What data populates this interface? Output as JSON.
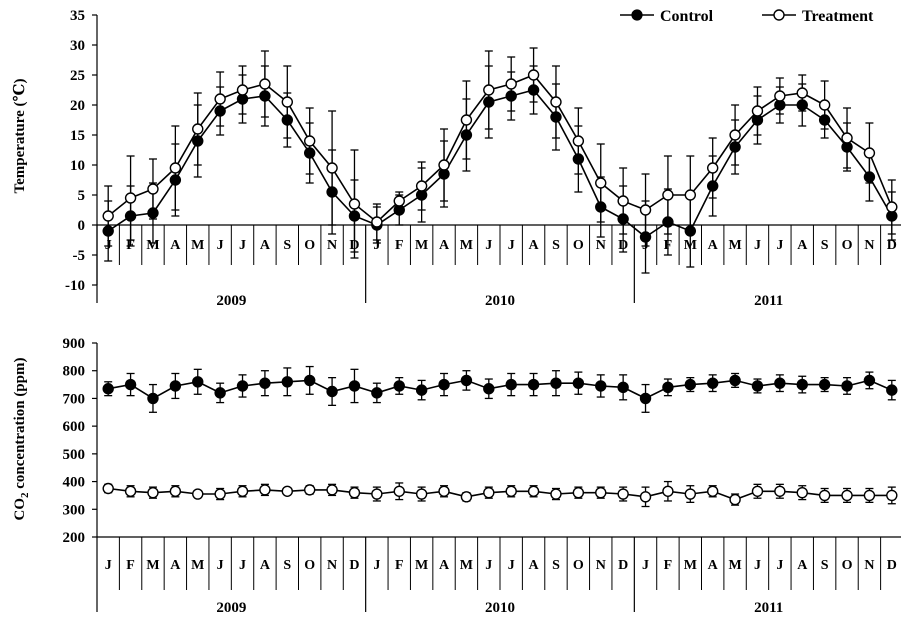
{
  "legend": {
    "control_label": "Control",
    "treatment_label": "Treatment",
    "position": "top-right"
  },
  "chart_data": [
    {
      "type": "line",
      "ylabel": "Temperature (℃)",
      "ylim": [
        -10,
        35
      ],
      "yticks": [
        -10,
        -5,
        0,
        5,
        10,
        15,
        20,
        25,
        30,
        35
      ],
      "months": [
        "J",
        "F",
        "M",
        "A",
        "M",
        "J",
        "J",
        "A",
        "S",
        "O",
        "N",
        "D",
        "J",
        "F",
        "M",
        "A",
        "M",
        "J",
        "J",
        "A",
        "S",
        "O",
        "N",
        "D",
        "J",
        "F",
        "M",
        "A",
        "M",
        "J",
        "J",
        "A",
        "S",
        "O",
        "N",
        "D"
      ],
      "years": [
        "2009",
        "2010",
        "2011"
      ],
      "series": [
        {
          "name": "Control",
          "marker": "filled-circle",
          "values": [
            -1,
            1.5,
            2,
            7.5,
            14,
            19,
            21,
            21.5,
            17.5,
            12,
            5.5,
            1.5,
            0,
            2.5,
            5,
            8.5,
            15,
            20.5,
            21.5,
            22.5,
            18,
            11,
            3,
            1,
            -2,
            0.5,
            -1,
            6.5,
            13,
            17.5,
            20,
            20,
            17.5,
            13,
            8,
            1.5
          ],
          "errors": [
            5,
            5,
            5,
            6,
            6,
            4,
            4,
            5,
            4.5,
            5,
            7,
            6,
            3,
            2.5,
            4.5,
            5.5,
            6,
            6,
            4,
            4,
            5.5,
            5.5,
            5,
            5.5,
            6,
            5.5,
            6,
            5,
            4.5,
            4,
            3,
            3.5,
            3,
            4,
            4,
            4
          ]
        },
        {
          "name": "Treatment",
          "marker": "open-circle",
          "values": [
            1.5,
            4.5,
            6,
            9.5,
            16,
            21,
            22.5,
            23.5,
            20.5,
            14,
            9.5,
            3.5,
            0.5,
            4,
            6.5,
            10,
            17.5,
            22.5,
            23.5,
            25,
            20.5,
            14,
            7,
            4,
            2.5,
            5,
            5,
            9.5,
            15,
            19,
            21.5,
            22,
            20,
            14.5,
            12,
            3
          ],
          "errors": [
            5,
            7,
            5,
            7,
            6,
            4.5,
            4,
            5.5,
            6,
            5.5,
            9.5,
            9,
            3,
            1.5,
            4,
            6,
            6.5,
            6.5,
            4.5,
            4.5,
            6,
            5.5,
            6.5,
            5.5,
            6,
            6.5,
            6.5,
            5,
            5,
            4,
            3,
            3,
            4,
            5,
            5,
            4.5
          ]
        }
      ]
    },
    {
      "type": "line",
      "ylabel_main": "CO",
      "ylabel_sub": "2",
      "ylabel_rest": " concentration (ppm)",
      "ylim": [
        200,
        900
      ],
      "yticks": [
        200,
        300,
        400,
        500,
        600,
        700,
        800,
        900
      ],
      "months": [
        "J",
        "F",
        "M",
        "A",
        "M",
        "J",
        "J",
        "A",
        "S",
        "O",
        "N",
        "D",
        "J",
        "F",
        "M",
        "A",
        "M",
        "J",
        "J",
        "A",
        "S",
        "O",
        "N",
        "D",
        "J",
        "F",
        "M",
        "A",
        "M",
        "J",
        "J",
        "A",
        "S",
        "O",
        "N",
        "D"
      ],
      "years": [
        "2009",
        "2010",
        "2011"
      ],
      "series": [
        {
          "name": "Control",
          "marker": "filled-circle",
          "values": [
            735,
            750,
            700,
            745,
            760,
            720,
            745,
            755,
            760,
            765,
            725,
            745,
            720,
            745,
            730,
            750,
            765,
            735,
            750,
            750,
            755,
            755,
            745,
            740,
            700,
            740,
            750,
            755,
            765,
            745,
            755,
            750,
            750,
            745,
            765,
            730
          ],
          "errors": [
            25,
            40,
            50,
            45,
            45,
            35,
            40,
            45,
            50,
            50,
            50,
            60,
            35,
            30,
            35,
            40,
            35,
            35,
            40,
            40,
            45,
            40,
            40,
            45,
            50,
            30,
            25,
            30,
            25,
            25,
            30,
            30,
            25,
            30,
            30,
            35
          ]
        },
        {
          "name": "Treatment",
          "marker": "open-circle",
          "values": [
            375,
            365,
            360,
            365,
            355,
            355,
            365,
            370,
            365,
            370,
            370,
            360,
            355,
            365,
            355,
            365,
            345,
            360,
            365,
            365,
            355,
            360,
            360,
            355,
            345,
            365,
            355,
            365,
            335,
            365,
            365,
            360,
            350,
            350,
            350,
            350
          ],
          "errors": [
            15,
            20,
            20,
            20,
            10,
            20,
            20,
            20,
            10,
            15,
            20,
            20,
            25,
            30,
            25,
            20,
            15,
            20,
            20,
            20,
            20,
            20,
            20,
            25,
            35,
            35,
            30,
            20,
            20,
            25,
            25,
            25,
            25,
            25,
            25,
            30
          ]
        }
      ]
    }
  ]
}
